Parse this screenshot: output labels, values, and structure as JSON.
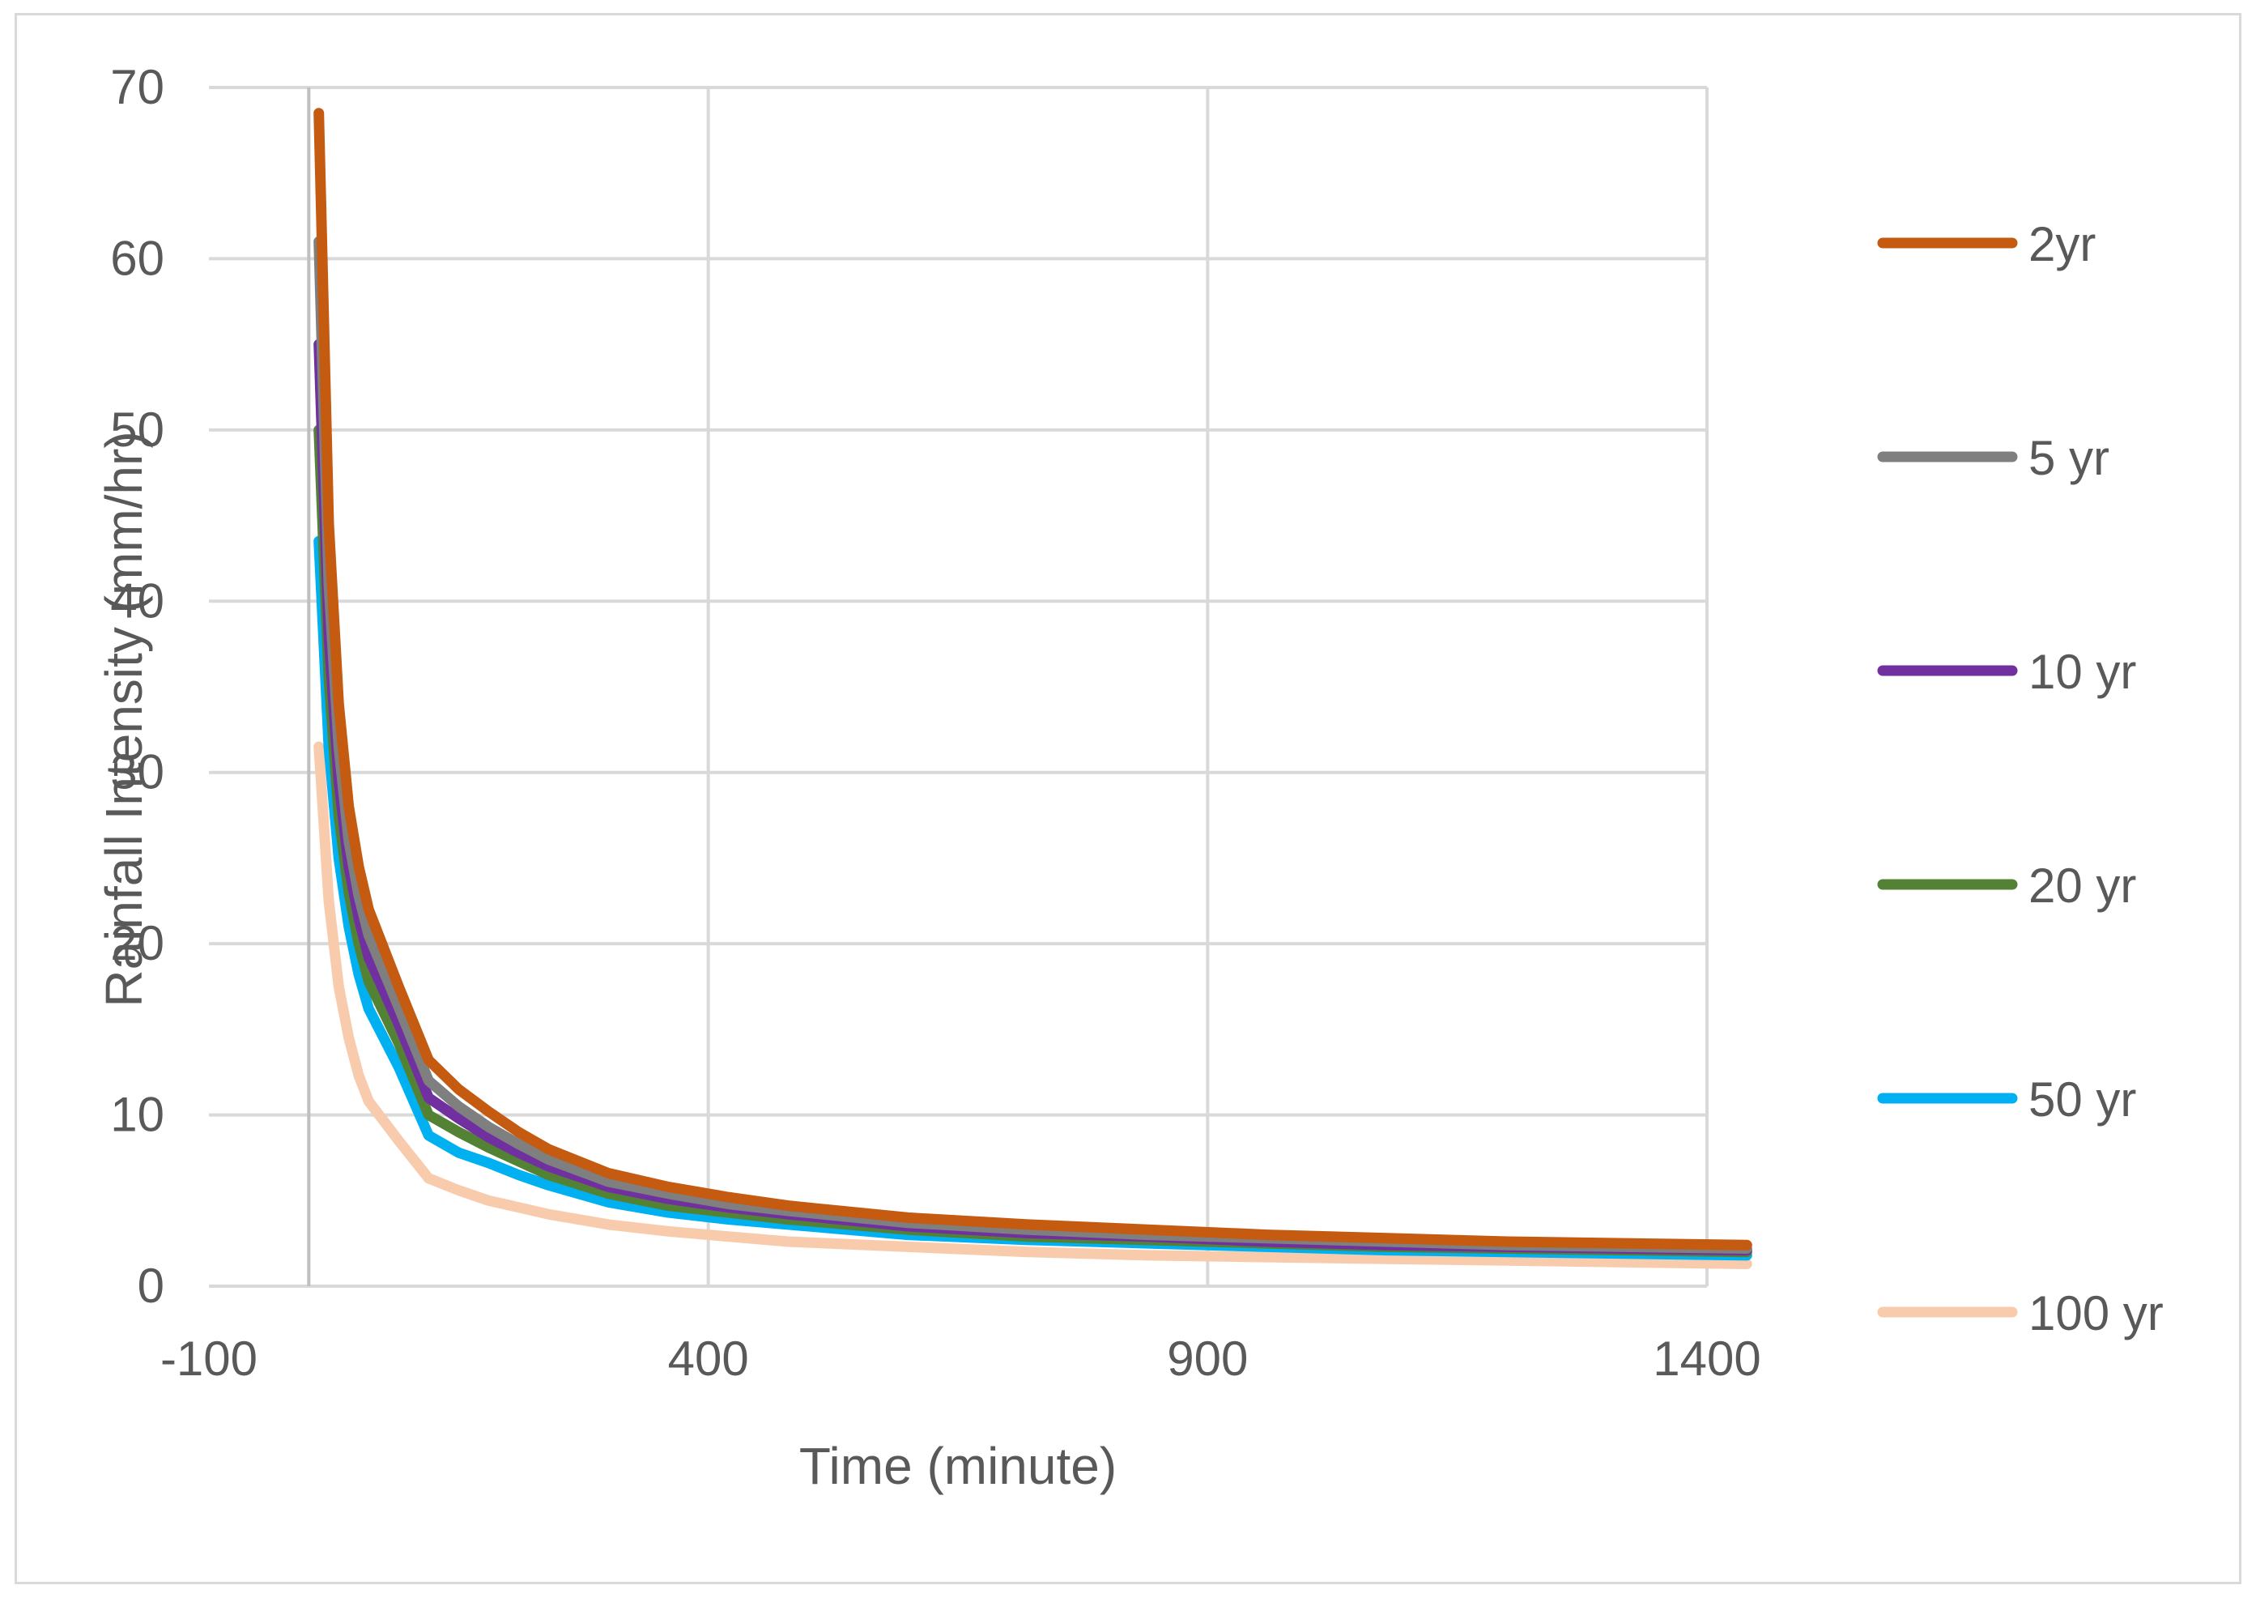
{
  "chart_data": {
    "type": "line",
    "title": "",
    "xlabel": "Time (minute)",
    "ylabel": "Rainfall Intensity (mm/hr)",
    "xlim": [
      -100,
      1400
    ],
    "ylim": [
      0,
      70
    ],
    "x_ticks": [
      -100,
      400,
      900,
      1400
    ],
    "y_ticks": [
      0,
      10,
      20,
      30,
      40,
      50,
      60,
      70
    ],
    "grid": true,
    "legend_position": "right",
    "x": [
      10,
      20,
      30,
      40,
      50,
      60,
      90,
      120,
      150,
      180,
      210,
      240,
      300,
      360,
      420,
      480,
      600,
      720,
      840,
      960,
      1080,
      1200,
      1440
    ],
    "series": [
      {
        "name": "2yr",
        "color": "#c55a11",
        "values": [
          68.5,
          44.5,
          34.0,
          28.0,
          24.5,
          22.0,
          17.5,
          13.2,
          11.5,
          10.2,
          9.0,
          8.0,
          6.6,
          5.8,
          5.2,
          4.7,
          4.0,
          3.6,
          3.3,
          3.0,
          2.8,
          2.6,
          2.4
        ]
      },
      {
        "name": "5 yr",
        "color": "#7f7f7f",
        "values": [
          61.0,
          41.0,
          31.5,
          26.0,
          22.8,
          20.5,
          16.3,
          12.0,
          10.5,
          9.3,
          8.3,
          7.4,
          6.1,
          5.4,
          4.8,
          4.4,
          3.7,
          3.3,
          3.0,
          2.8,
          2.6,
          2.4,
          2.2
        ]
      },
      {
        "name": "10 yr",
        "color": "#7030a0",
        "values": [
          55.0,
          38.0,
          29.5,
          24.5,
          21.5,
          19.2,
          15.3,
          11.0,
          9.8,
          8.7,
          7.8,
          7.0,
          5.8,
          5.1,
          4.6,
          4.2,
          3.5,
          3.1,
          2.9,
          2.6,
          2.4,
          2.3,
          2.1
        ]
      },
      {
        "name": "20 yr",
        "color": "#548235",
        "values": [
          50.0,
          35.5,
          27.5,
          23.0,
          20.0,
          17.8,
          14.2,
          10.0,
          9.0,
          8.1,
          7.3,
          6.5,
          5.4,
          4.7,
          4.3,
          3.9,
          3.3,
          2.9,
          2.7,
          2.5,
          2.3,
          2.2,
          2.0
        ]
      },
      {
        "name": "50 yr",
        "color": "#00b0f0",
        "values": [
          43.5,
          31.5,
          25.0,
          21.0,
          18.2,
          16.2,
          12.8,
          8.8,
          7.8,
          7.2,
          6.5,
          5.9,
          4.9,
          4.3,
          3.9,
          3.6,
          3.0,
          2.7,
          2.5,
          2.3,
          2.1,
          2.0,
          1.8
        ]
      },
      {
        "name": "100 yr",
        "color": "#f8cbad",
        "values": [
          31.5,
          22.5,
          17.5,
          14.5,
          12.3,
          10.8,
          8.5,
          6.3,
          5.6,
          5.0,
          4.6,
          4.2,
          3.6,
          3.2,
          2.9,
          2.6,
          2.3,
          2.0,
          1.8,
          1.7,
          1.6,
          1.5,
          1.3
        ]
      }
    ]
  }
}
